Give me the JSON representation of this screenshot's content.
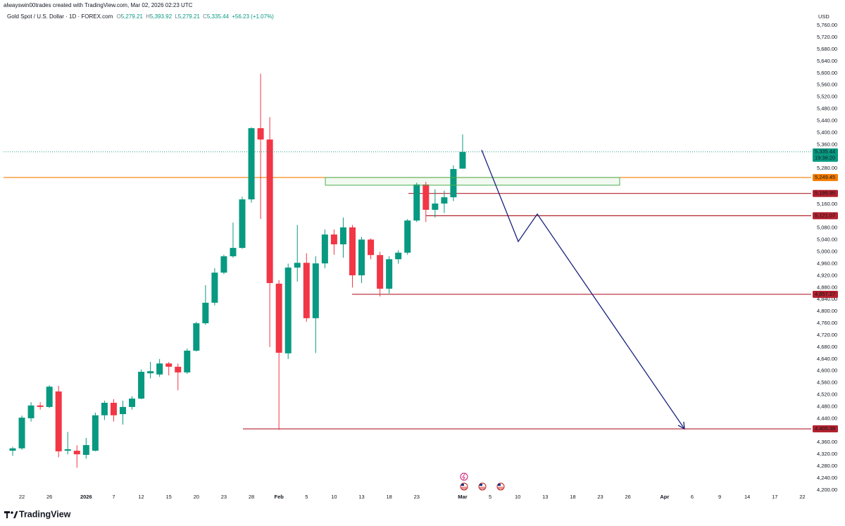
{
  "chart_data": {
    "type": "candlestick",
    "watermark": "alwayswin00trades created with TradingView.com, Mar 02, 2026 02:23 UTC",
    "symbol": "Gold Spot / U.S. Dollar · 1D · FOREX.com",
    "ohlc_header": [
      {
        "label": "O",
        "value": "5,279.21"
      },
      {
        "label": "H",
        "value": "5,393.92"
      },
      {
        "label": "L",
        "value": "5,279.21"
      },
      {
        "label": "C",
        "value": "5,335.44"
      }
    ],
    "change": "+56.23 (+1.07%)",
    "currency": "USD",
    "branding": "TradingView",
    "up_color": "#089981",
    "down_color": "#f23645",
    "categories": [
      null,
      "22",
      null,
      null,
      "26",
      null,
      null,
      null,
      "2026",
      null,
      null,
      "7",
      null,
      null,
      "12",
      null,
      null,
      "15",
      null,
      null,
      "20",
      null,
      null,
      "23",
      null,
      null,
      "28",
      null,
      null,
      "Feb",
      null,
      null,
      "5",
      null,
      null,
      "10",
      null,
      null,
      "13",
      null,
      null,
      "18",
      null,
      null,
      "23",
      null,
      null,
      null,
      null,
      "Mar",
      null,
      null,
      "5",
      null,
      null,
      "10",
      null,
      null,
      "13",
      null,
      null,
      "18",
      null,
      null,
      "23",
      null,
      null,
      "26",
      null,
      null,
      null,
      "Apr",
      null,
      null,
      "6",
      null,
      null,
      "9",
      null,
      null,
      "14",
      null,
      null,
      "17",
      null,
      null,
      "22"
    ],
    "open": [
      4332,
      4340,
      4441,
      4484,
      4479,
      4531,
      4332,
      4332,
      4318,
      4332,
      4451,
      4493,
      4455,
      4479,
      4507,
      4592,
      4588,
      4625,
      4614,
      4595,
      4668,
      4760,
      4829,
      4930,
      4985,
      5013,
      5176,
      5415,
      5377,
      4893,
      4659,
      4947,
      4963,
      4777,
      4961,
      5058,
      5025,
      5082,
      4921,
      5041,
      4989,
      4876,
      4975,
      4997,
      5105,
      5226,
      5141,
      5162,
      5183,
      5279.21,
      null,
      null,
      null,
      null,
      null,
      null,
      null,
      null,
      null,
      null,
      null,
      null,
      null,
      null,
      null,
      null,
      null,
      null,
      null,
      null,
      null,
      null,
      null,
      null,
      null,
      null,
      null,
      null,
      null,
      null,
      null,
      null,
      null,
      null,
      null,
      null,
      null
    ],
    "high": [
      4345,
      4450,
      4495,
      4495,
      4552,
      4550,
      4395,
      4350,
      4375,
      4460,
      4500,
      4505,
      4500,
      4515,
      4605,
      4630,
      4640,
      4630,
      4625,
      4675,
      4765,
      4888,
      4945,
      4990,
      5098,
      5185,
      5418,
      5598,
      5452,
      4905,
      4960,
      5090,
      4995,
      4985,
      5075,
      5075,
      5115,
      5090,
      5050,
      5045,
      5000,
      4985,
      5005,
      5110,
      5232,
      5235,
      5210,
      5205,
      5290,
      5393.92,
      null,
      null,
      null,
      null,
      null,
      null,
      null,
      null,
      null,
      null,
      null,
      null,
      null,
      null,
      null,
      null,
      null,
      null,
      null,
      null,
      null,
      null,
      null,
      null,
      null,
      null,
      null,
      null,
      null,
      null,
      null,
      null,
      null,
      null,
      null,
      null,
      null
    ],
    "low": [
      4315,
      4335,
      4430,
      4470,
      4475,
      4310,
      4320,
      4275,
      4305,
      4330,
      4435,
      4430,
      4420,
      4470,
      4505,
      4575,
      4580,
      4585,
      4535,
      4590,
      4665,
      4755,
      4820,
      4925,
      4980,
      5010,
      5165,
      5110,
      4680,
      4402,
      4640,
      4900,
      4765,
      4660,
      4945,
      4990,
      4980,
      4880,
      4895,
      4975,
      4850,
      4860,
      4960,
      4990,
      5100,
      5100,
      5115,
      5130,
      5170,
      5279.21,
      null,
      null,
      null,
      null,
      null,
      null,
      null,
      null,
      null,
      null,
      null,
      null,
      null,
      null,
      null,
      null,
      null,
      null,
      null,
      null,
      null,
      null,
      null,
      null,
      null,
      null,
      null,
      null,
      null,
      null,
      null,
      null,
      null,
      null,
      null,
      null,
      null
    ],
    "close": [
      4340,
      4443,
      4484,
      4479,
      4547,
      4330,
      4337,
      4320,
      4351,
      4451,
      4493,
      4451,
      4479,
      4507,
      4597,
      4599,
      4625,
      4614,
      4595,
      4668,
      4760,
      4829,
      4930,
      4985,
      5013,
      5176,
      5415,
      5377,
      4895,
      4661,
      4947,
      4963,
      4777,
      4961,
      5058,
      5025,
      5082,
      4921,
      5041,
      4989,
      4876,
      4975,
      4997,
      5105,
      5226,
      5141,
      5162,
      5183,
      5278,
      5335.44,
      null,
      null,
      null,
      null,
      null,
      null,
      null,
      null,
      null,
      null,
      null,
      null,
      null,
      null,
      null,
      null,
      null,
      null,
      null,
      null,
      null,
      null,
      null,
      null,
      null,
      null,
      null,
      null,
      null,
      null,
      null,
      null,
      null,
      null,
      null,
      null,
      null
    ],
    "last_price_label": "5,335.44",
    "countdown": "19:36:20",
    "levels": [
      {
        "value": 5249.45,
        "label": "5,249.45",
        "color": "#f57c00"
      },
      {
        "value": 5195.95,
        "label": "5,195.95",
        "color": "#b2222e"
      },
      {
        "value": 5121.07,
        "label": "5,121.07",
        "color": "#b2222e"
      },
      {
        "value": 4857.27,
        "label": "4,857.27",
        "color": "#b2222e"
      },
      {
        "value": 4405.39,
        "label": "4,405.39",
        "color": "#b2222e"
      }
    ],
    "ylim": [
      4162,
      5810
    ],
    "yticks": [
      {
        "value": 4200,
        "label": "4,200.00"
      },
      {
        "value": 4240,
        "label": "4,240.00"
      },
      {
        "value": 4280,
        "label": "4,280.00"
      },
      {
        "value": 4320,
        "label": "4,320.00"
      },
      {
        "value": 4360,
        "label": "4,360.00"
      },
      {
        "value": 4440,
        "label": "4,440.00"
      },
      {
        "value": 4480,
        "label": "4,480.00"
      },
      {
        "value": 4520,
        "label": "4,520.00"
      },
      {
        "value": 4560,
        "label": "4,560.00"
      },
      {
        "value": 4600,
        "label": "4,600.00"
      },
      {
        "value": 4640,
        "label": "4,640.00"
      },
      {
        "value": 4680,
        "label": "4,680.00"
      },
      {
        "value": 4720,
        "label": "4,720.00"
      },
      {
        "value": 4760,
        "label": "4,760.00"
      },
      {
        "value": 4800,
        "label": "4,800.00"
      },
      {
        "value": 4840,
        "label": "4,840.00"
      },
      {
        "value": 4880,
        "label": "4,880.00"
      },
      {
        "value": 4920,
        "label": "4,920.00"
      },
      {
        "value": 4960,
        "label": "4,960.00"
      },
      {
        "value": 5000,
        "label": "5,000.00"
      },
      {
        "value": 5040,
        "label": "5,040.00"
      },
      {
        "value": 5080,
        "label": "5,080.00"
      },
      {
        "value": 5160,
        "label": "5,160.00"
      },
      {
        "value": 5280,
        "label": "5,280.00"
      },
      {
        "value": 5360,
        "label": "5,360.00"
      },
      {
        "value": 5400,
        "label": "5,400.00"
      },
      {
        "value": 5440,
        "label": "5,440.00"
      },
      {
        "value": 5480,
        "label": "5,480.00"
      },
      {
        "value": 5520,
        "label": "5,520.00"
      },
      {
        "value": 5560,
        "label": "5,560.00"
      },
      {
        "value": 5600,
        "label": "5,600.00"
      },
      {
        "value": 5640,
        "label": "5,640.00"
      },
      {
        "value": 5680,
        "label": "5,680.00"
      },
      {
        "value": 5720,
        "label": "5,720.00"
      },
      {
        "value": 5760,
        "label": "5,760.00"
      }
    ]
  }
}
